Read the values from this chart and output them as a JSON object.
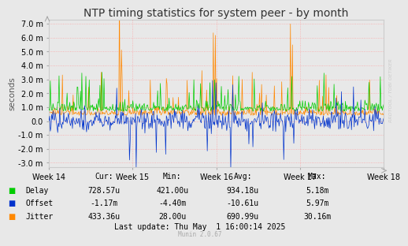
{
  "title": "NTP timing statistics for system peer - by month",
  "ylabel": "seconds",
  "background_color": "#e8e8e8",
  "plot_bg_color": "#e8e8e8",
  "grid_color": "#ff9999",
  "yticks": [
    -3.0,
    -2.0,
    -1.0,
    0.0,
    1.0,
    2.0,
    3.0,
    4.0,
    5.0,
    6.0,
    7.0
  ],
  "ytick_labels": [
    "-3.0 m",
    "-2.0 m",
    "-1.0 m",
    "0.0",
    "1.0 m",
    "2.0 m",
    "3.0 m",
    "4.0 m",
    "5.0 m",
    "6.0 m",
    "7.0 m"
  ],
  "ylim_low": -3.3,
  "ylim_high": 7.3,
  "xtick_labels": [
    "Week 14",
    "Week 15",
    "Week 16",
    "Week 17",
    "Week 18"
  ],
  "delay_color": "#00cc00",
  "offset_color": "#0033cc",
  "jitter_color": "#ff8800",
  "watermark": "RRDTOOL / TOBI OETIKER",
  "delay_cur": "728.57u",
  "delay_min": "421.00u",
  "delay_avg": "934.18u",
  "delay_max": "5.18m",
  "offset_cur": "-1.17m",
  "offset_min": "-4.40m",
  "offset_avg": "-10.61u",
  "offset_max": "5.97m",
  "jitter_cur": "433.36u",
  "jitter_min": "28.00u",
  "jitter_avg": "690.99u",
  "jitter_max": "30.16m",
  "last_update": "Last update: Thu May  1 16:00:14 2025",
  "munin_version": "Munin 2.0.67",
  "num_points": 500
}
